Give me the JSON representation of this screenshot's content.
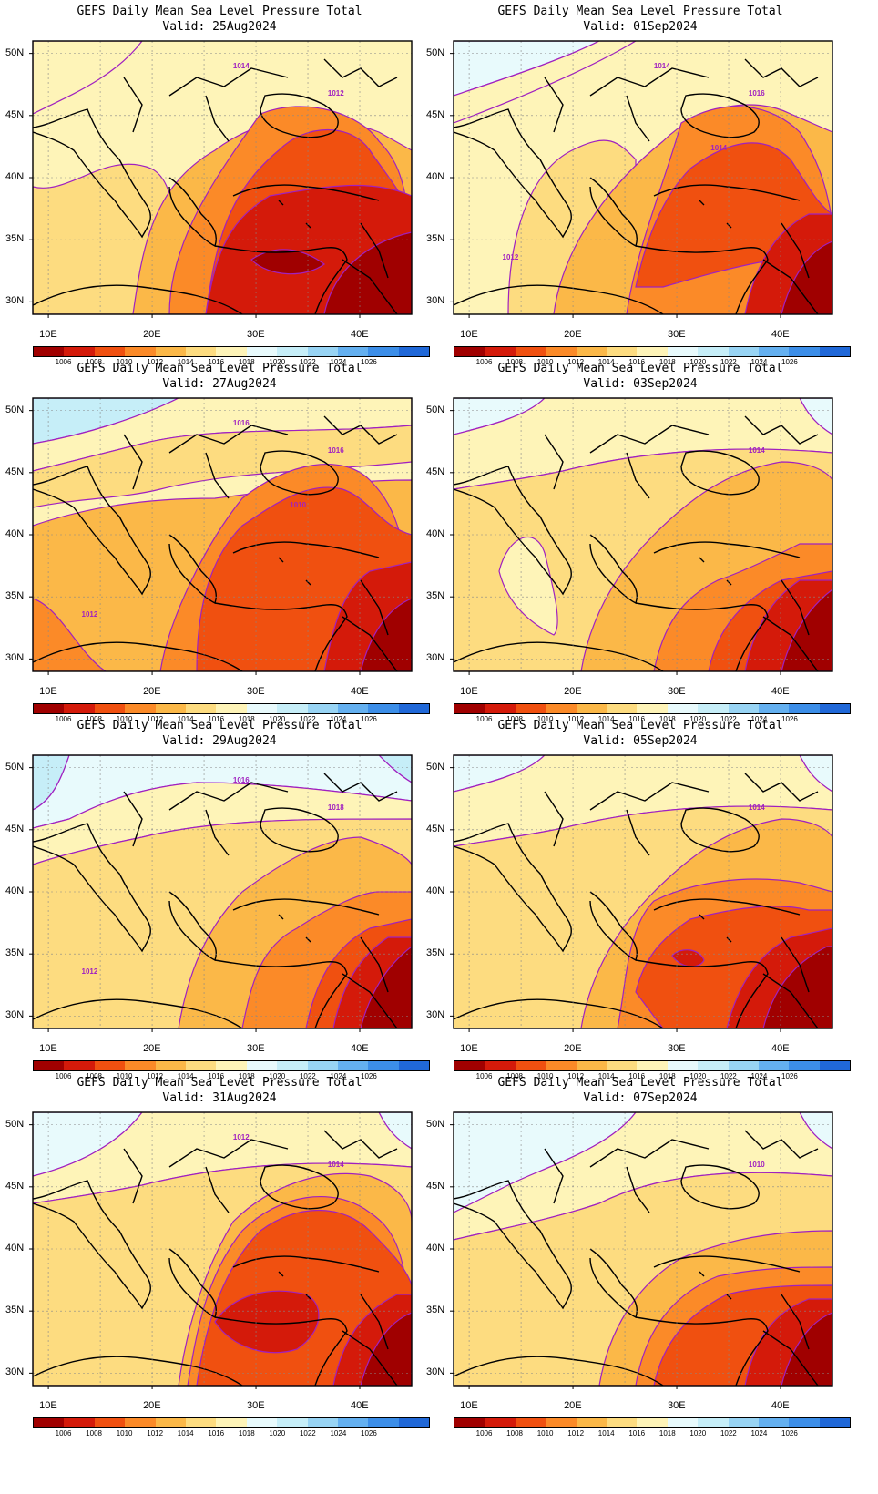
{
  "panels": [
    {
      "title": "GEFS Daily Mean Sea Level Pressure Total",
      "valid": "Valid:  25Aug2024",
      "contour_labels": [
        "1012",
        "1014"
      ]
    },
    {
      "title": "GEFS Daily Mean Sea Level Pressure Total",
      "valid": "Valid:  01Sep2024",
      "contour_labels": [
        "1016",
        "1014",
        "1012",
        "1014"
      ]
    },
    {
      "title": "GEFS Daily Mean Sea Level Pressure Total",
      "valid": "Valid:  27Aug2024",
      "contour_labels": [
        "1016",
        "1016",
        "1012",
        "1010"
      ]
    },
    {
      "title": "GEFS Daily Mean Sea Level Pressure Total",
      "valid": "Valid:  03Sep2024",
      "contour_labels": [
        "1014"
      ]
    },
    {
      "title": "GEFS Daily Mean Sea Level Pressure Total",
      "valid": "Valid:  29Aug2024",
      "contour_labels": [
        "1018",
        "1016",
        "1012"
      ]
    },
    {
      "title": "GEFS Daily Mean Sea Level Pressure Total",
      "valid": "Valid:  05Sep2024",
      "contour_labels": [
        "1014"
      ]
    },
    {
      "title": "GEFS Daily Mean Sea Level Pressure Total",
      "valid": "Valid:  31Aug2024",
      "contour_labels": [
        "1014",
        "1012"
      ]
    },
    {
      "title": "GEFS Daily Mean Sea Level Pressure Total",
      "valid": "Valid:  07Sep2024",
      "contour_labels": [
        "1010"
      ]
    }
  ],
  "lat_labels": [
    "50N",
    "45N",
    "40N",
    "35N",
    "30N"
  ],
  "lon_labels": [
    "10E",
    "20E",
    "30E",
    "40E"
  ],
  "colorbar": {
    "labels": [
      "1006",
      "1008",
      "1010",
      "1012",
      "1014",
      "1016",
      "1018",
      "1020",
      "1022",
      "1024",
      "1026"
    ],
    "colors": [
      "#a00000",
      "#d41a0a",
      "#f05010",
      "#fb8a28",
      "#fbb848",
      "#fddc80",
      "#fef4b8",
      "#e8fafc",
      "#c6eef8",
      "#98d4f4",
      "#64b0f0",
      "#3c8ee8",
      "#2068d8"
    ]
  },
  "map_colors": {
    "p1006": "#a00000",
    "p1008": "#d41a0a",
    "p1010": "#f05010",
    "p1012": "#fb8a28",
    "p1014": "#fbb848",
    "p1016": "#fddc80",
    "p1018": "#fef4b8",
    "p1020": "#e8fafc",
    "p1022": "#c6eef8",
    "contour": "#a020c0"
  }
}
